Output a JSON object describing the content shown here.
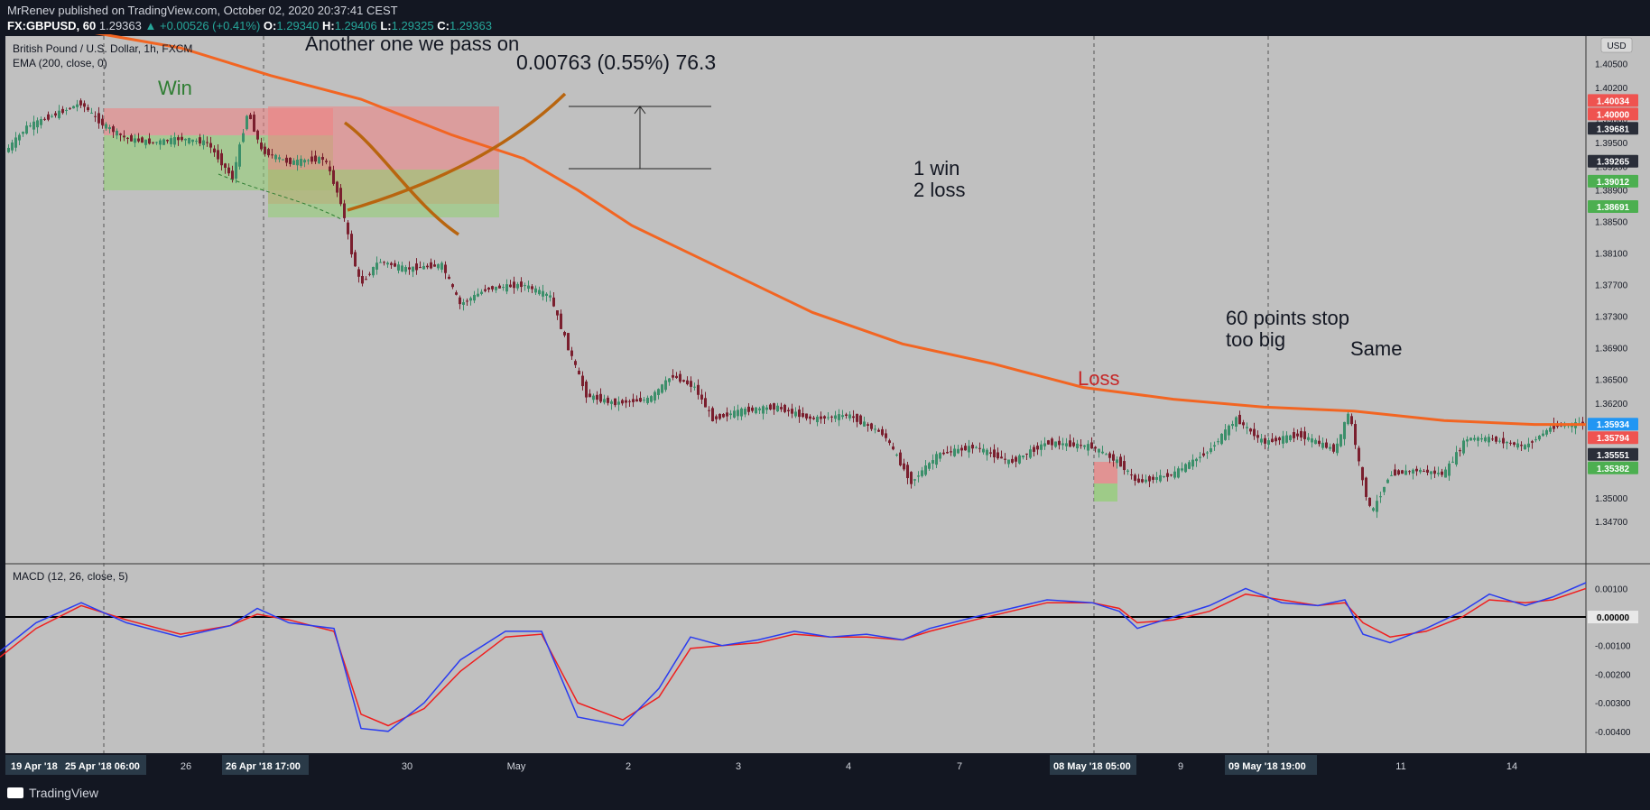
{
  "header": {
    "publisher_line": "MrRenev published on TradingView.com, October 02, 2020 20:37:41 CEST",
    "symbol": "FX:GBPUSD, 60",
    "last": "1.29363",
    "change": "▲ +0.00526 (+0.41%)",
    "o_label": "O:",
    "o": "1.29340",
    "h_label": "H:",
    "h": "1.29406",
    "l_label": "L:",
    "l": "1.29325",
    "c_label": "C:",
    "c": "1.29363"
  },
  "legend": {
    "title": "British Pound / U.S. Dollar, 1h, FXCM",
    "ema": "EMA (200, close, 0)",
    "macd": "MACD (12, 26, close, 5)",
    "currency": "USD"
  },
  "annotations": {
    "win": "Win",
    "another": "Another one we pass on",
    "measure": "0.00763 (0.55%) 76.3",
    "tally_1": "1 win",
    "tally_2": "2 loss",
    "stop_1": "60 points stop",
    "stop_2": "too big",
    "same": "Same",
    "loss": "Loss"
  },
  "colors": {
    "background": "#c0c0c0",
    "ema": "#f26522",
    "candle_up": "#3b8f6a",
    "candle_down": "#7a1f2e",
    "macd_line": "#2a3cf0",
    "signal_line": "#f01e1e",
    "stop_zone": "#f08080",
    "target_zone": "#90d070",
    "hand_drawn": "#b8650f",
    "win_text": "#2e7d32",
    "loss_text": "#c62828"
  },
  "footer": {
    "brand": "TradingView"
  },
  "chart_data": {
    "type": "candlestick",
    "price_axis": {
      "ticks": [
        "1.40500",
        "1.40200",
        "1.39800",
        "1.39500",
        "1.39200",
        "1.38900",
        "1.38500",
        "1.38100",
        "1.37700",
        "1.37300",
        "1.36900",
        "1.36500",
        "1.36200",
        "1.35800",
        "1.35400",
        "1.35000",
        "1.34700"
      ],
      "ylim": [
        1.346,
        1.4085
      ],
      "badges": [
        {
          "value": "1.40034",
          "kind": "red"
        },
        {
          "value": "1.40000",
          "kind": "red"
        },
        {
          "value": "1.39681",
          "kind": "dark"
        },
        {
          "value": "1.39265",
          "kind": "dark"
        },
        {
          "value": "1.39012",
          "kind": "green"
        },
        {
          "value": "1.38691",
          "kind": "green"
        },
        {
          "value": "1.35934",
          "kind": "blue"
        },
        {
          "value": "1.35794",
          "kind": "red"
        },
        {
          "value": "1.35551",
          "kind": "dark"
        },
        {
          "value": "1.35382",
          "kind": "green"
        }
      ]
    },
    "time_axis": {
      "ticks": [
        "26",
        "30",
        "May",
        "2",
        "3",
        "4",
        "7",
        "9",
        "11",
        "14"
      ],
      "highlighted": [
        "19 Apr '18",
        "25 Apr '18   06:00",
        "26 Apr '18   17:00",
        "08 May '18   05:00",
        "09 May '18   19:00"
      ]
    },
    "price_path": [
      [
        0,
        1.393
      ],
      [
        30,
        1.397
      ],
      [
        60,
        1.3985
      ],
      [
        90,
        1.4
      ],
      [
        112,
        1.3975
      ],
      [
        140,
        1.3955
      ],
      [
        170,
        1.395
      ],
      [
        200,
        1.3955
      ],
      [
        230,
        1.395
      ],
      [
        258,
        1.3905
      ],
      [
        275,
        1.399
      ],
      [
        290,
        1.394
      ],
      [
        320,
        1.3925
      ],
      [
        360,
        1.393
      ],
      [
        378,
        1.3875
      ],
      [
        390,
        1.381
      ],
      [
        400,
        1.377
      ],
      [
        420,
        1.38
      ],
      [
        450,
        1.379
      ],
      [
        490,
        1.3795
      ],
      [
        510,
        1.3745
      ],
      [
        540,
        1.3765
      ],
      [
        580,
        1.377
      ],
      [
        610,
        1.3755
      ],
      [
        630,
        1.369
      ],
      [
        650,
        1.363
      ],
      [
        680,
        1.362
      ],
      [
        720,
        1.3625
      ],
      [
        745,
        1.3655
      ],
      [
        770,
        1.364
      ],
      [
        790,
        1.36
      ],
      [
        820,
        1.361
      ],
      [
        860,
        1.3615
      ],
      [
        900,
        1.36
      ],
      [
        940,
        1.3605
      ],
      [
        980,
        1.358
      ],
      [
        1010,
        1.352
      ],
      [
        1040,
        1.3555
      ],
      [
        1080,
        1.3565
      ],
      [
        1120,
        1.3545
      ],
      [
        1160,
        1.357
      ],
      [
        1210,
        1.3565
      ],
      [
        1240,
        1.3545
      ],
      [
        1260,
        1.352
      ],
      [
        1300,
        1.353
      ],
      [
        1340,
        1.356
      ],
      [
        1370,
        1.36
      ],
      [
        1400,
        1.357
      ],
      [
        1440,
        1.358
      ],
      [
        1480,
        1.356
      ],
      [
        1495,
        1.361
      ],
      [
        1510,
        1.352
      ],
      [
        1520,
        1.348
      ],
      [
        1540,
        1.353
      ],
      [
        1570,
        1.3535
      ],
      [
        1600,
        1.353
      ],
      [
        1625,
        1.3575
      ],
      [
        1650,
        1.3575
      ],
      [
        1690,
        1.3565
      ],
      [
        1720,
        1.359
      ],
      [
        1757,
        1.3595
      ]
    ],
    "ema_path": [
      [
        0,
        1.411
      ],
      [
        100,
        1.409
      ],
      [
        200,
        1.407
      ],
      [
        300,
        1.4035
      ],
      [
        400,
        1.4005
      ],
      [
        500,
        1.396
      ],
      [
        580,
        1.393
      ],
      [
        640,
        1.389
      ],
      [
        700,
        1.3845
      ],
      [
        800,
        1.379
      ],
      [
        900,
        1.3735
      ],
      [
        1000,
        1.3695
      ],
      [
        1100,
        1.367
      ],
      [
        1200,
        1.364
      ],
      [
        1300,
        1.3625
      ],
      [
        1400,
        1.3615
      ],
      [
        1500,
        1.361
      ],
      [
        1600,
        1.3598
      ],
      [
        1700,
        1.3593
      ],
      [
        1757,
        1.3593
      ]
    ],
    "macd": {
      "ticks": [
        "0.00100",
        "0.00000",
        "-0.00100",
        "-0.00200",
        "-0.00300",
        "-0.00400"
      ],
      "ylim": [
        -0.0047,
        0.0018
      ],
      "macd_path": [
        [
          0,
          -0.0012
        ],
        [
          40,
          -0.0002
        ],
        [
          90,
          0.0005
        ],
        [
          140,
          -0.0002
        ],
        [
          200,
          -0.0007
        ],
        [
          255,
          -0.0003
        ],
        [
          285,
          0.0003
        ],
        [
          320,
          -0.0002
        ],
        [
          370,
          -0.0004
        ],
        [
          400,
          -0.0039
        ],
        [
          430,
          -0.004
        ],
        [
          470,
          -0.003
        ],
        [
          510,
          -0.0015
        ],
        [
          560,
          -0.0005
        ],
        [
          600,
          -0.0005
        ],
        [
          640,
          -0.0035
        ],
        [
          690,
          -0.0038
        ],
        [
          730,
          -0.0025
        ],
        [
          765,
          -0.0007
        ],
        [
          800,
          -0.001
        ],
        [
          840,
          -0.0008
        ],
        [
          880,
          -0.0005
        ],
        [
          920,
          -0.0007
        ],
        [
          960,
          -0.0006
        ],
        [
          1000,
          -0.0008
        ],
        [
          1030,
          -0.0004
        ],
        [
          1080,
          0.0
        ],
        [
          1120,
          0.0003
        ],
        [
          1160,
          0.0006
        ],
        [
          1210,
          0.0005
        ],
        [
          1240,
          0.0002
        ],
        [
          1260,
          -0.0004
        ],
        [
          1300,
          0.0
        ],
        [
          1340,
          0.0004
        ],
        [
          1380,
          0.001
        ],
        [
          1420,
          0.0005
        ],
        [
          1460,
          0.0004
        ],
        [
          1490,
          0.0006
        ],
        [
          1510,
          -0.0006
        ],
        [
          1540,
          -0.0009
        ],
        [
          1580,
          -0.0004
        ],
        [
          1620,
          0.0002
        ],
        [
          1650,
          0.0008
        ],
        [
          1690,
          0.0004
        ],
        [
          1720,
          0.0007
        ],
        [
          1757,
          0.0012
        ]
      ],
      "signal_path": [
        [
          0,
          -0.0014
        ],
        [
          40,
          -0.0004
        ],
        [
          90,
          0.0004
        ],
        [
          140,
          -0.0001
        ],
        [
          200,
          -0.0006
        ],
        [
          255,
          -0.0003
        ],
        [
          285,
          0.0001
        ],
        [
          320,
          -0.0001
        ],
        [
          370,
          -0.0005
        ],
        [
          400,
          -0.0034
        ],
        [
          430,
          -0.0038
        ],
        [
          470,
          -0.0032
        ],
        [
          510,
          -0.0019
        ],
        [
          560,
          -0.0007
        ],
        [
          600,
          -0.0006
        ],
        [
          640,
          -0.003
        ],
        [
          690,
          -0.0036
        ],
        [
          730,
          -0.0028
        ],
        [
          765,
          -0.0011
        ],
        [
          800,
          -0.001
        ],
        [
          840,
          -0.0009
        ],
        [
          880,
          -0.0006
        ],
        [
          920,
          -0.0007
        ],
        [
          960,
          -0.0007
        ],
        [
          1000,
          -0.0008
        ],
        [
          1030,
          -0.0005
        ],
        [
          1080,
          -0.0001
        ],
        [
          1120,
          0.0002
        ],
        [
          1160,
          0.0005
        ],
        [
          1210,
          0.0005
        ],
        [
          1240,
          0.0003
        ],
        [
          1260,
          -0.0002
        ],
        [
          1300,
          -0.0001
        ],
        [
          1340,
          0.0002
        ],
        [
          1380,
          0.0008
        ],
        [
          1420,
          0.0006
        ],
        [
          1460,
          0.0004
        ],
        [
          1490,
          0.0005
        ],
        [
          1510,
          -0.0002
        ],
        [
          1540,
          -0.0007
        ],
        [
          1580,
          -0.0005
        ],
        [
          1620,
          0.0
        ],
        [
          1650,
          0.0006
        ],
        [
          1690,
          0.0005
        ],
        [
          1720,
          0.0006
        ],
        [
          1757,
          0.001
        ]
      ]
    }
  }
}
